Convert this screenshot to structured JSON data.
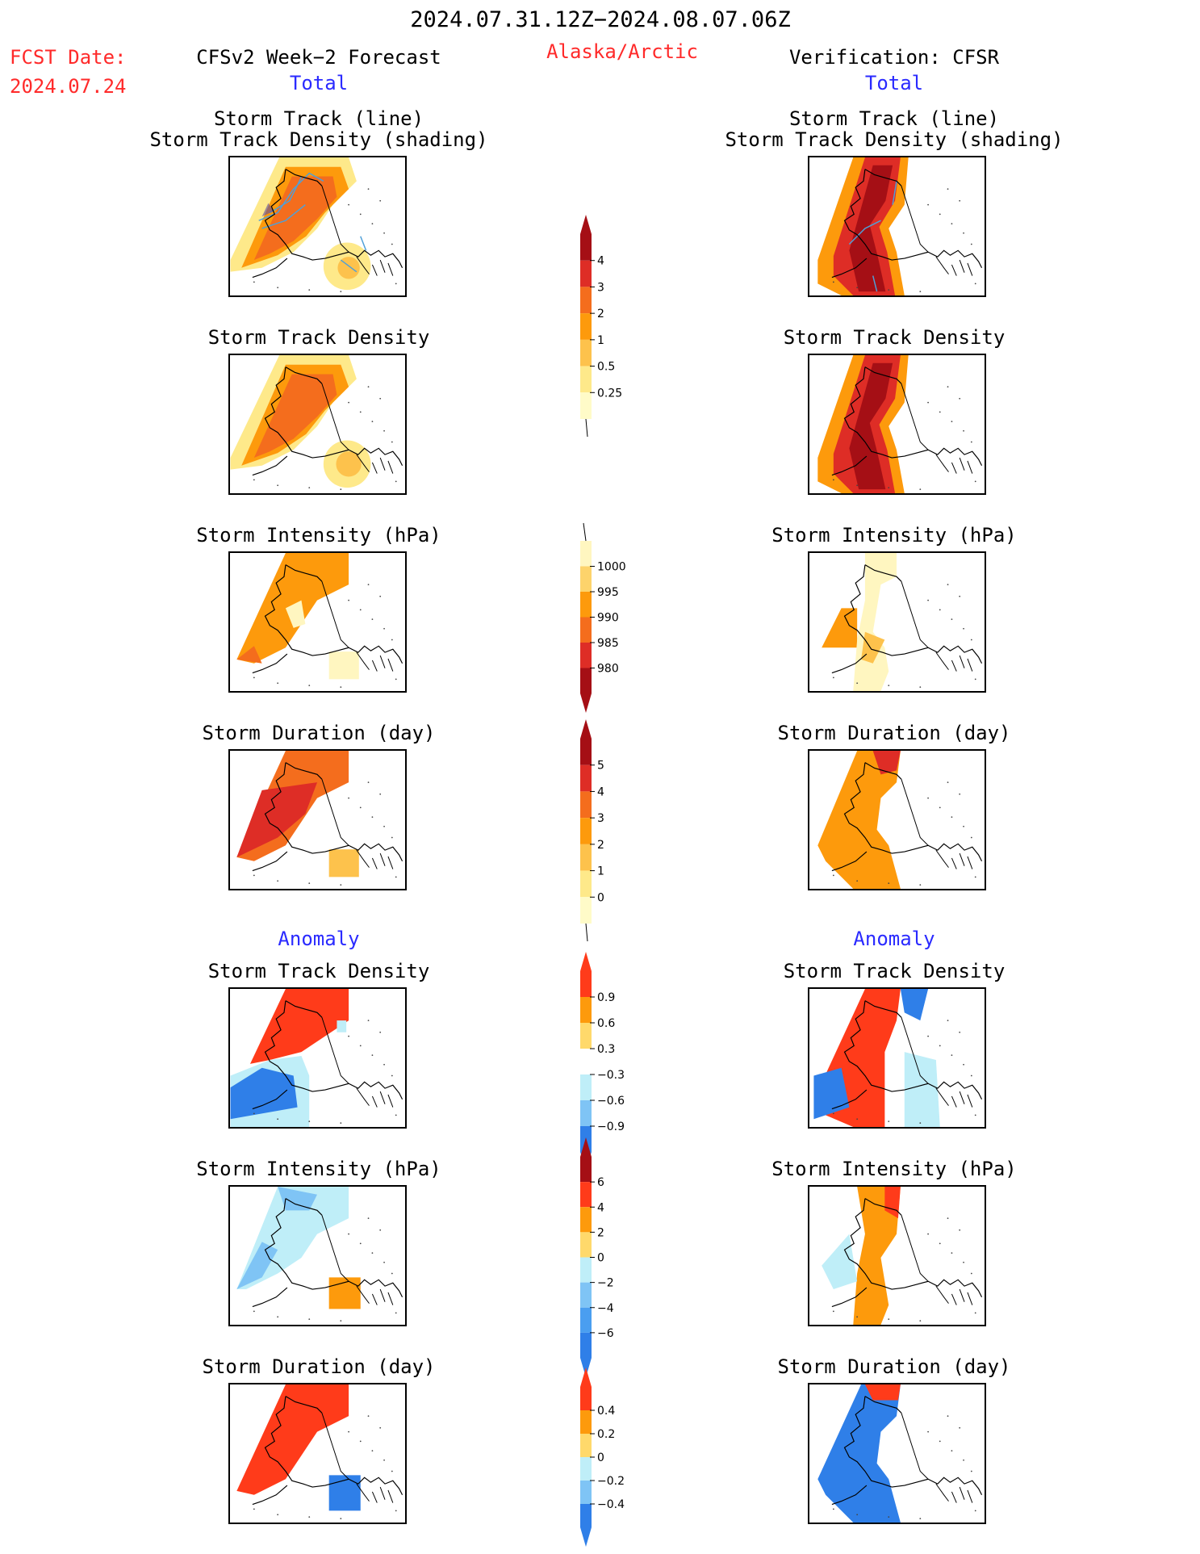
{
  "header": {
    "period": "2024.07.31.12Z−2024.08.07.06Z",
    "fcst_label": "FCST Date:",
    "fcst_date": "2024.07.24",
    "left_title": "CFSv2 Week−2 Forecast",
    "region": "Alaska/Arctic",
    "right_title": "Verification: CFSR",
    "section_total": "Total",
    "section_anomaly": "Anomaly"
  },
  "rows": [
    {
      "id": "track",
      "title1": "Storm Track (line)",
      "title2": "Storm Track Density (shading)"
    },
    {
      "id": "density",
      "title1": "Storm Track Density"
    },
    {
      "id": "intensity",
      "title1": "Storm Intensity (hPa)"
    },
    {
      "id": "duration",
      "title1": "Storm Duration (day)"
    },
    {
      "id": "anom_density",
      "title1": "Storm Track Density"
    },
    {
      "id": "anom_intensity",
      "title1": "Storm Intensity (hPa)"
    },
    {
      "id": "anom_duration",
      "title1": "Storm Duration (day)"
    }
  ],
  "colorbars": [
    {
      "id": "cb-density",
      "labels": [
        "4",
        "3",
        "2",
        "1",
        "0.5",
        "0.25"
      ],
      "colors": [
        "#a50f15",
        "#de2d26",
        "#f46d1d",
        "#fd9a0c",
        "#fdc24c",
        "#fee98a",
        "#fffbc8"
      ]
    },
    {
      "id": "cb-intensity",
      "labels": [
        "1000",
        "995",
        "990",
        "985",
        "980"
      ],
      "colors": [
        "#fff6c0",
        "#fdd36b",
        "#fd9a0c",
        "#f46d1d",
        "#de2d26",
        "#a50f15"
      ]
    },
    {
      "id": "cb-duration",
      "labels": [
        "5",
        "4",
        "3",
        "2",
        "1",
        "0"
      ],
      "colors": [
        "#a50f15",
        "#de2d26",
        "#f46d1d",
        "#fd9a0c",
        "#fdc24c",
        "#fee98a",
        "#fffbc8"
      ]
    },
    {
      "id": "cb-anom-density",
      "labels": [
        "0.9",
        "0.6",
        "0.3",
        "−0.3",
        "−0.6",
        "−0.9"
      ],
      "colors": [
        "#ff3b1a",
        "#fd9a0c",
        "#ffd96b",
        "#ffffff",
        "#bfeef8",
        "#7fc4f5",
        "#2f7fe8"
      ]
    },
    {
      "id": "cb-anom-intensity",
      "labels": [
        "6",
        "4",
        "2",
        "0",
        "−2",
        "−4",
        "−6"
      ],
      "colors": [
        "#a50f15",
        "#ff3b1a",
        "#fd9a0c",
        "#ffd96b",
        "#bfeef8",
        "#7fc4f5",
        "#4a9ef0",
        "#2f7fe8"
      ]
    },
    {
      "id": "cb-anom-duration",
      "labels": [
        "0.4",
        "0.2",
        "0",
        "−0.2",
        "−0.4"
      ],
      "colors": [
        "#ff3b1a",
        "#fd9a0c",
        "#ffd96b",
        "#bfeef8",
        "#7fc4f5",
        "#2f7fe8"
      ]
    }
  ],
  "palette": {
    "darkred": "#a50f15",
    "red": "#de2d26",
    "orange": "#f46d1d",
    "lightorange": "#fd9a0c",
    "yellow": "#fdc24c",
    "paleyellow": "#fee98a",
    "anomred": "#ff3b1a",
    "anomblue": "#2f7fe8",
    "lightblue": "#bfeef8",
    "midblue": "#7fc4f5",
    "trackline": "#4fa0d8"
  }
}
